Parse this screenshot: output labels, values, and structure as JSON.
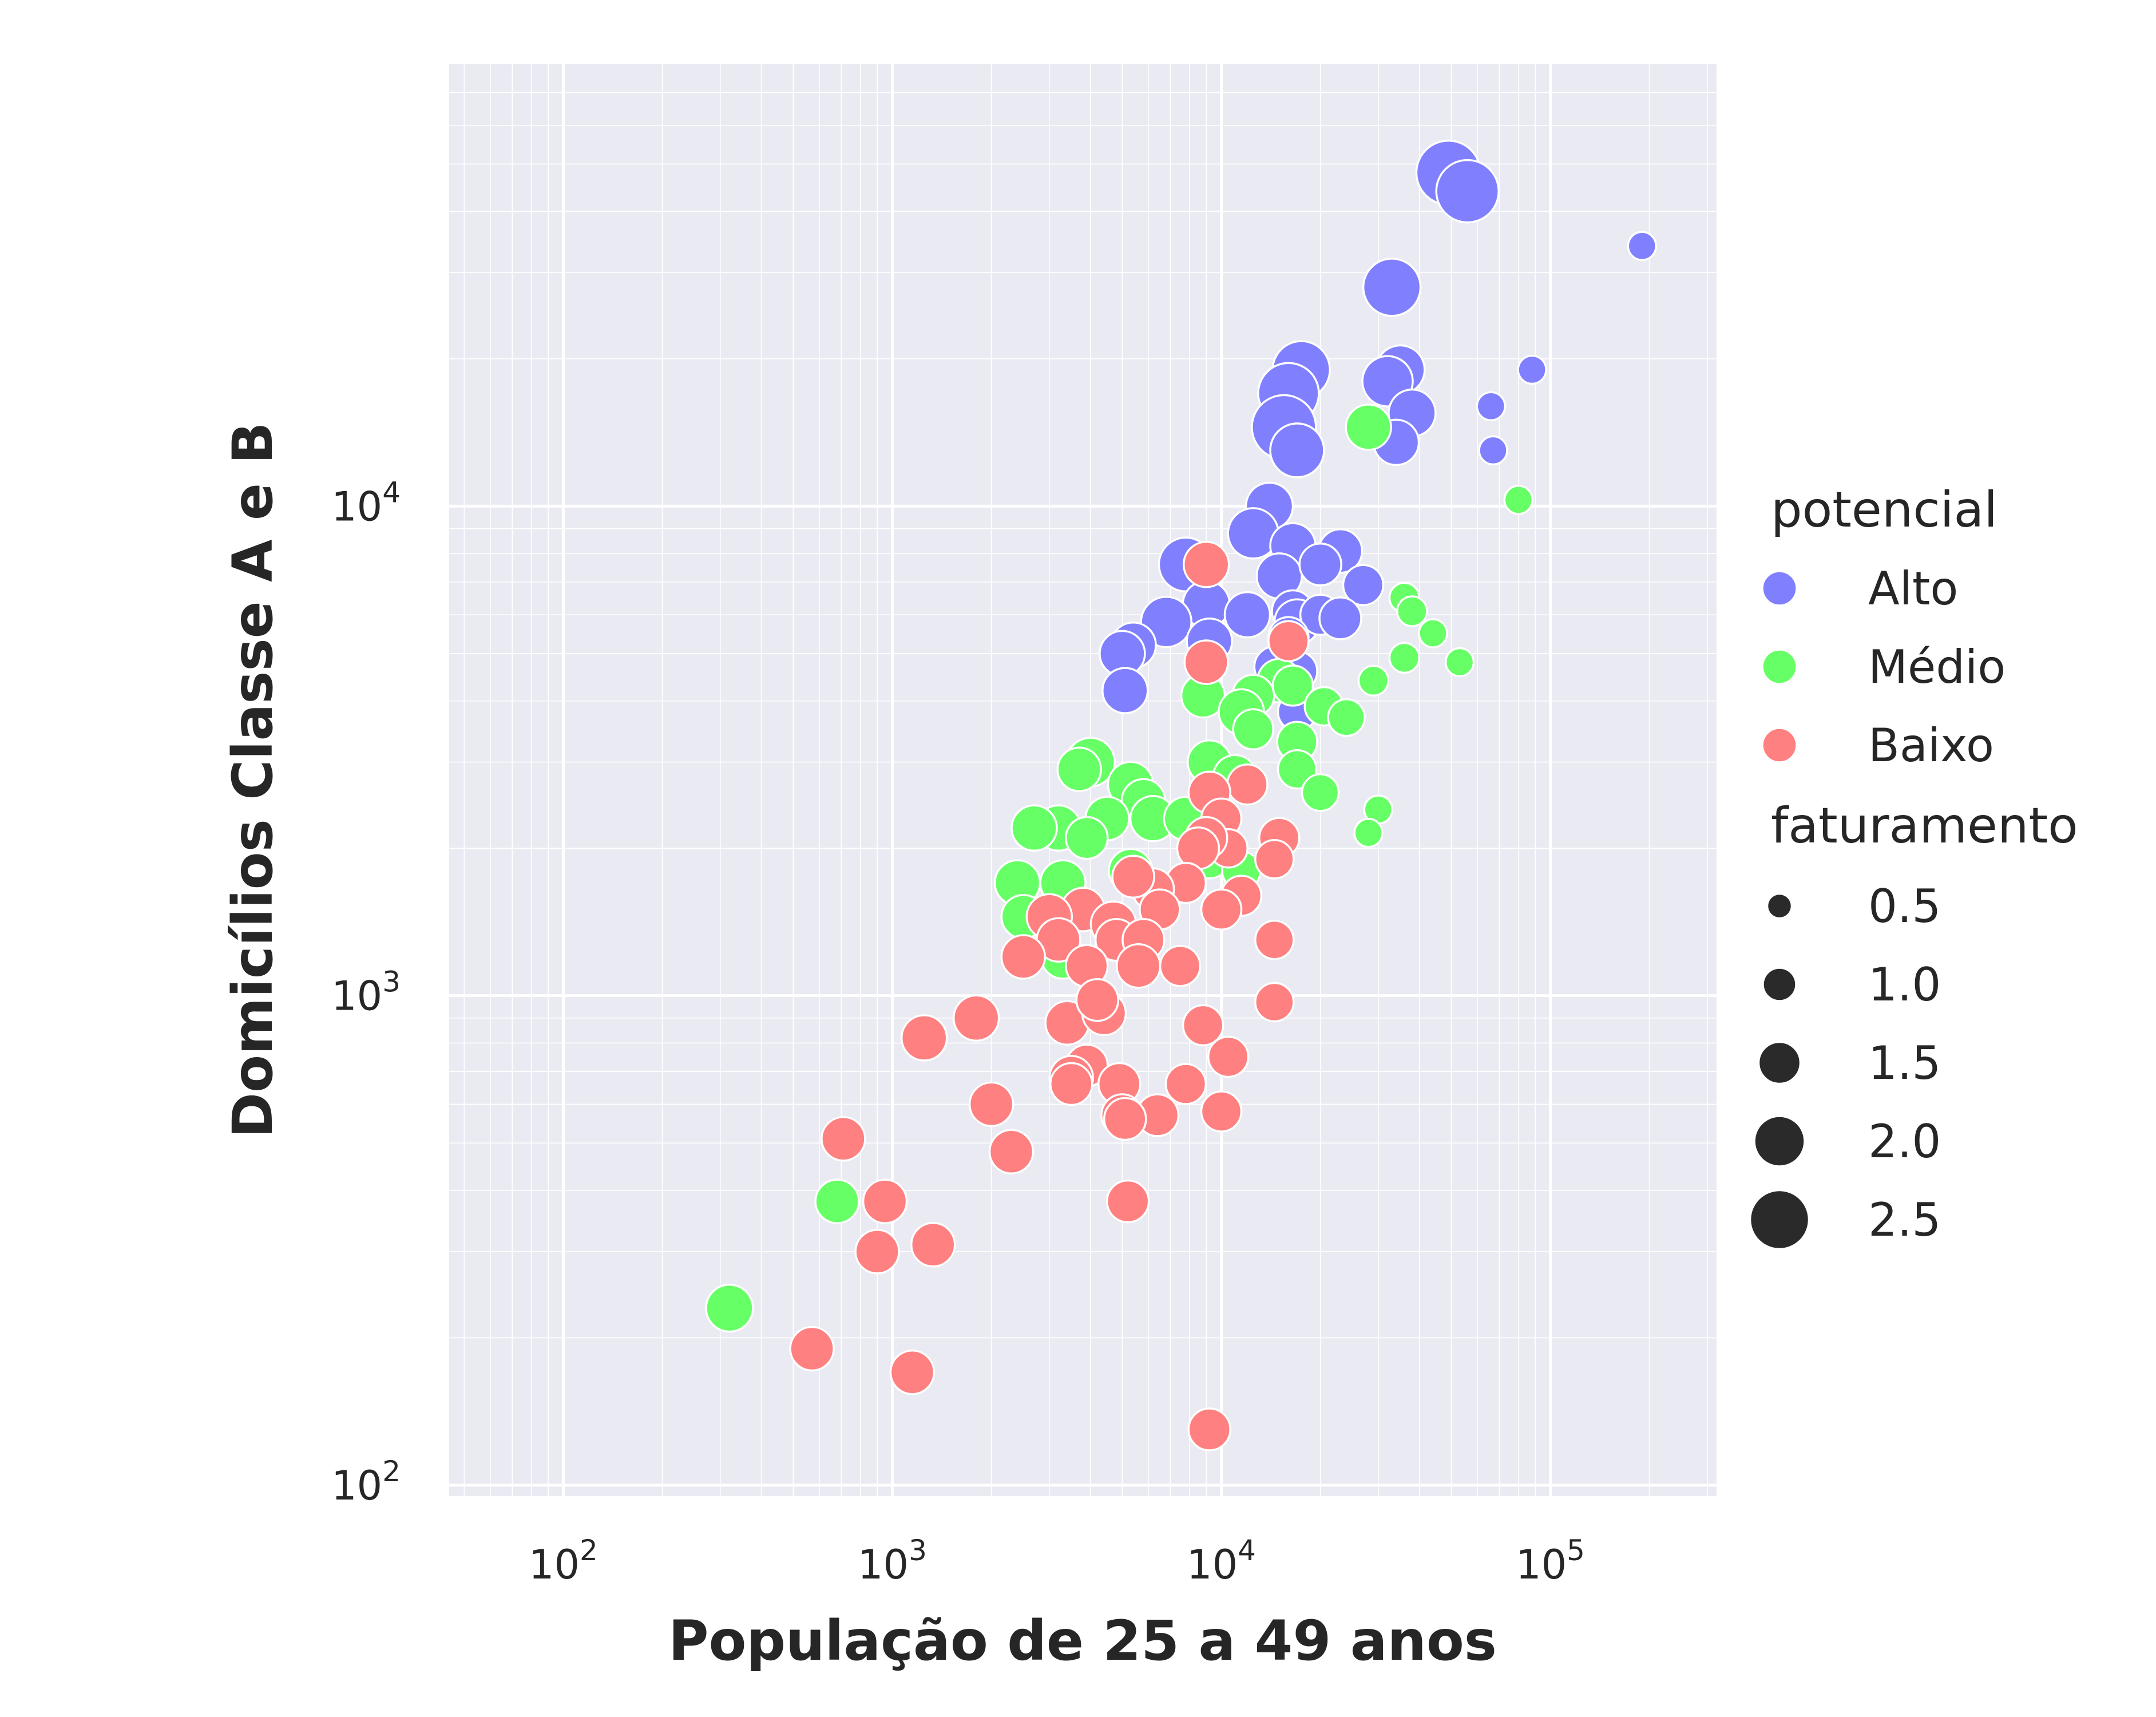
{
  "chart_data": {
    "type": "scatter",
    "xlabel": "População de 25 a 49 anos",
    "ylabel": "Domicílios Classe A e B",
    "xscale": "log",
    "yscale": "log",
    "xlim": [
      45,
      320000
    ],
    "ylim": [
      95,
      80000
    ],
    "xticks": [
      {
        "value": 100,
        "base": "10",
        "exp": "2"
      },
      {
        "value": 1000,
        "base": "10",
        "exp": "3"
      },
      {
        "value": 10000,
        "base": "10",
        "exp": "4"
      },
      {
        "value": 100000,
        "base": "10",
        "exp": "5"
      }
    ],
    "yticks": [
      {
        "value": 100,
        "base": "10",
        "exp": "2"
      },
      {
        "value": 1000,
        "base": "10",
        "exp": "3"
      },
      {
        "value": 10000,
        "base": "10",
        "exp": "4"
      }
    ],
    "grid": true,
    "background": "#eaeaf2",
    "legend": {
      "placement": "right",
      "hue_title": "potencial",
      "size_title": "faturamento",
      "hue_entries": [
        {
          "label": "Alto",
          "color": "#8080ff"
        },
        {
          "label": "Médio",
          "color": "#66ff66"
        },
        {
          "label": "Baixo",
          "color": "#ff8080"
        }
      ],
      "size_entries": [
        {
          "label": "0.5",
          "value": 0.5
        },
        {
          "label": "1.0",
          "value": 1.0
        },
        {
          "label": "1.5",
          "value": 1.5
        },
        {
          "label": "2.0",
          "value": 2.0
        },
        {
          "label": "2.5",
          "value": 2.5
        }
      ]
    },
    "series": [
      {
        "name": "Alto",
        "color": "#8080ff",
        "points": [
          [
            49000,
            48000,
            2.4
          ],
          [
            56000,
            44000,
            2.3
          ],
          [
            33000,
            28000,
            2.0
          ],
          [
            190000,
            34000,
            0.3
          ],
          [
            17500,
            19000,
            2.0
          ],
          [
            16000,
            17000,
            2.2
          ],
          [
            15500,
            14500,
            2.4
          ],
          [
            17000,
            13000,
            1.8
          ],
          [
            35000,
            19000,
            1.5
          ],
          [
            32000,
            18000,
            1.6
          ],
          [
            38000,
            15500,
            1.4
          ],
          [
            34000,
            13500,
            1.3
          ],
          [
            88000,
            19000,
            0.3
          ],
          [
            66000,
            16000,
            0.3
          ],
          [
            67000,
            13000,
            0.3
          ],
          [
            14000,
            10000,
            1.4
          ],
          [
            12500,
            8800,
            1.6
          ],
          [
            16500,
            8300,
            1.3
          ],
          [
            15000,
            7200,
            1.3
          ],
          [
            7800,
            7600,
            1.8
          ],
          [
            23000,
            8100,
            1.2
          ],
          [
            20000,
            7600,
            1.1
          ],
          [
            27000,
            6900,
            1.0
          ],
          [
            9000,
            6300,
            1.4
          ],
          [
            6800,
            5800,
            1.6
          ],
          [
            12000,
            6000,
            1.3
          ],
          [
            16500,
            6100,
            1.1
          ],
          [
            17000,
            5800,
            1.3
          ],
          [
            20000,
            6000,
            1.0
          ],
          [
            23000,
            5900,
            1.1
          ],
          [
            16000,
            5400,
            1.0
          ],
          [
            9200,
            5300,
            1.3
          ],
          [
            5400,
            5200,
            1.3
          ],
          [
            5000,
            5000,
            1.3
          ],
          [
            14500,
            4700,
            1.0
          ],
          [
            17000,
            4600,
            1.0
          ],
          [
            5100,
            4200,
            1.3
          ],
          [
            17000,
            3800,
            0.9
          ]
        ]
      },
      {
        "name": "Médio",
        "color": "#66ff66",
        "points": [
          [
            28000,
            14500,
            1.3
          ],
          [
            80000,
            10300,
            0.3
          ],
          [
            36000,
            6500,
            0.4
          ],
          [
            38000,
            6100,
            0.4
          ],
          [
            44000,
            5500,
            0.3
          ],
          [
            36000,
            4900,
            0.4
          ],
          [
            53000,
            4800,
            0.3
          ],
          [
            29000,
            4400,
            0.4
          ],
          [
            15000,
            4400,
            1.2
          ],
          [
            12500,
            4100,
            1.1
          ],
          [
            16500,
            4300,
            1.0
          ],
          [
            8800,
            4100,
            1.2
          ],
          [
            11500,
            3800,
            1.3
          ],
          [
            20500,
            3900,
            0.9
          ],
          [
            24000,
            3700,
            0.8
          ],
          [
            12500,
            3500,
            1.0
          ],
          [
            17000,
            3300,
            1.0
          ],
          [
            17000,
            2900,
            0.9
          ],
          [
            4000,
            3000,
            1.5
          ],
          [
            3700,
            2900,
            1.2
          ],
          [
            9200,
            3000,
            1.2
          ],
          [
            11000,
            2800,
            1.2
          ],
          [
            5300,
            2700,
            1.3
          ],
          [
            5800,
            2500,
            1.2
          ],
          [
            6200,
            2300,
            1.3
          ],
          [
            4500,
            2300,
            1.2
          ],
          [
            7800,
            2300,
            1.2
          ],
          [
            20000,
            2600,
            0.8
          ],
          [
            30000,
            2400,
            0.3
          ],
          [
            28000,
            2150,
            0.3
          ],
          [
            3200,
            2200,
            1.3
          ],
          [
            2700,
            2200,
            1.3
          ],
          [
            3900,
            2100,
            1.1
          ],
          [
            9200,
            1900,
            0.9
          ],
          [
            11500,
            1800,
            0.9
          ],
          [
            5300,
            1800,
            1.2
          ],
          [
            3300,
            1700,
            1.3
          ],
          [
            2400,
            1700,
            1.3
          ],
          [
            2500,
            1450,
            1.2
          ],
          [
            3300,
            1200,
            1.2
          ],
          [
            680,
            380,
            1.2
          ],
          [
            320,
            230,
            1.4
          ]
        ]
      },
      {
        "name": "Baixo",
        "color": "#ff8080",
        "points": [
          [
            9000,
            7600,
            1.3
          ],
          [
            16000,
            5300,
            1.0
          ],
          [
            9000,
            4800,
            1.2
          ],
          [
            12000,
            2700,
            1.0
          ],
          [
            9200,
            2600,
            1.1
          ],
          [
            10000,
            2300,
            1.0
          ],
          [
            10500,
            2000,
            0.9
          ],
          [
            15000,
            2100,
            1.0
          ],
          [
            9000,
            2100,
            1.1
          ],
          [
            8500,
            2000,
            1.1
          ],
          [
            14500,
            1900,
            0.9
          ],
          [
            11500,
            1600,
            1.0
          ],
          [
            7800,
            1700,
            1.0
          ],
          [
            6200,
            1650,
            1.1
          ],
          [
            5400,
            1750,
            1.1
          ],
          [
            6500,
            1500,
            1.0
          ],
          [
            3800,
            1500,
            1.2
          ],
          [
            4700,
            1400,
            1.3
          ],
          [
            3000,
            1450,
            1.3
          ],
          [
            10000,
            1500,
            1.0
          ],
          [
            14500,
            1300,
            0.9
          ],
          [
            3200,
            1300,
            1.2
          ],
          [
            4800,
            1300,
            1.1
          ],
          [
            5800,
            1300,
            1.1
          ],
          [
            2500,
            1200,
            1.2
          ],
          [
            3900,
            1150,
            1.1
          ],
          [
            5600,
            1150,
            1.2
          ],
          [
            7500,
            1150,
            1.0
          ],
          [
            1800,
            900,
            1.3
          ],
          [
            3400,
            880,
            1.2
          ],
          [
            4400,
            920,
            1.2
          ],
          [
            4200,
            980,
            1.1
          ],
          [
            8800,
            870,
            1.0
          ],
          [
            14500,
            970,
            0.9
          ],
          [
            1250,
            820,
            1.3
          ],
          [
            10500,
            750,
            1.0
          ],
          [
            3900,
            720,
            1.1
          ],
          [
            3500,
            680,
            1.2
          ],
          [
            3500,
            660,
            1.1
          ],
          [
            4900,
            660,
            1.1
          ],
          [
            7800,
            660,
            1.0
          ],
          [
            2000,
            600,
            1.2
          ],
          [
            10000,
            580,
            1.0
          ],
          [
            5000,
            570,
            1.1
          ],
          [
            6400,
            570,
            1.1
          ],
          [
            5100,
            560,
            1.1
          ],
          [
            2300,
            480,
            1.2
          ],
          [
            710,
            510,
            1.2
          ],
          [
            5200,
            380,
            1.1
          ],
          [
            950,
            380,
            1.2
          ],
          [
            900,
            300,
            1.2
          ],
          [
            1330,
            310,
            1.2
          ],
          [
            570,
            190,
            1.2
          ],
          [
            1150,
            170,
            1.2
          ],
          [
            9200,
            130,
            1.1
          ]
        ]
      }
    ]
  }
}
